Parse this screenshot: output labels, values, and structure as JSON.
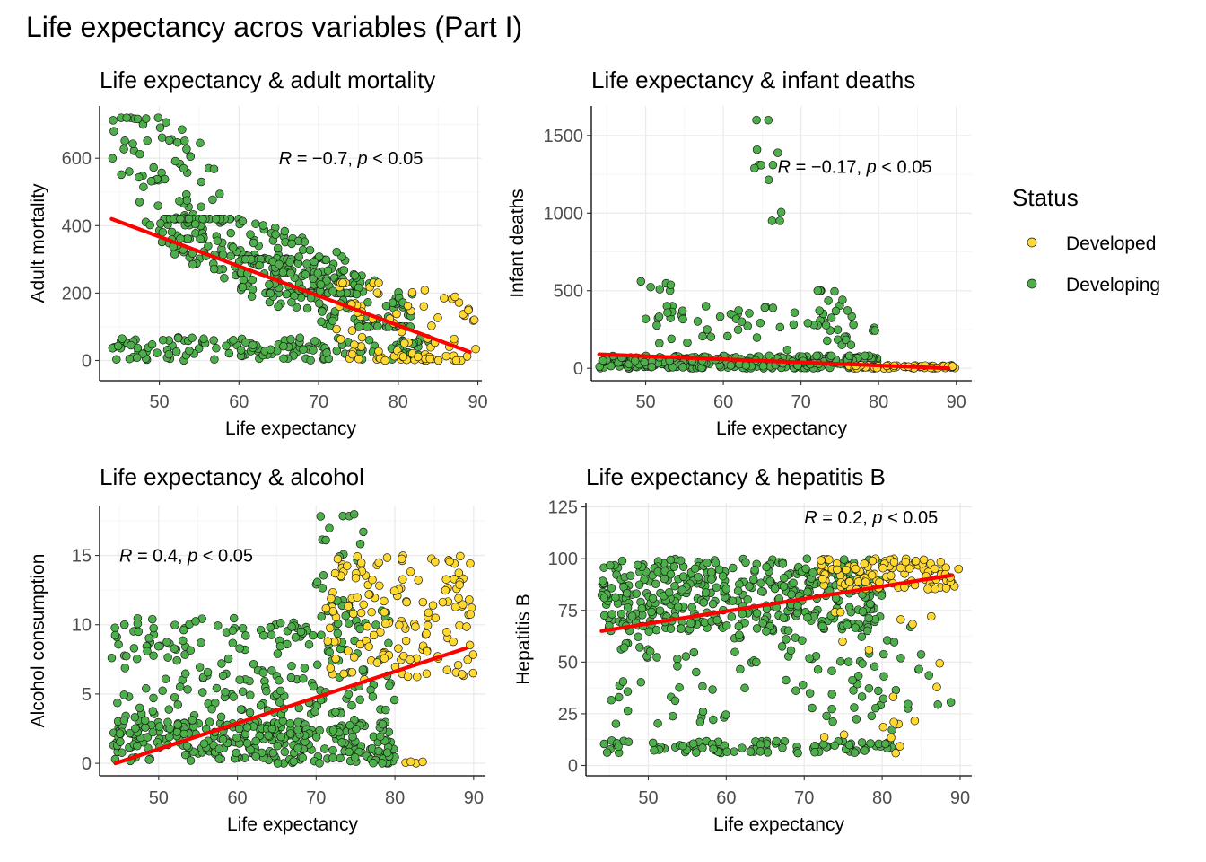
{
  "title": "Life expectancy acros variables (Part I)",
  "legend": {
    "title": "Status",
    "items": [
      {
        "label": "Developed",
        "color": "#FFD92F"
      },
      {
        "label": "Developing",
        "color": "#4DAF4A"
      }
    ]
  },
  "colors": {
    "developed": "#FFD92F",
    "developing": "#4DAF4A",
    "fit": "#FF0000"
  },
  "chart_data": [
    {
      "type": "scatter",
      "title": "Life expectancy & adult mortality",
      "xlabel": "Life expectancy",
      "ylabel": "Adult mortality",
      "xlim": [
        42.5,
        90.5
      ],
      "ylim": [
        -60,
        755
      ],
      "xticks": [
        50,
        60,
        70,
        80,
        90
      ],
      "yticks": [
        0,
        200,
        400,
        600
      ],
      "annotation": {
        "r": "R = −0.7, ",
        "p": "p",
        "rest": " < 0.05",
        "x": 65,
        "y": 600
      },
      "fit": [
        [
          44,
          420
        ],
        [
          89,
          25
        ]
      ],
      "clusters": [
        {
          "status": "developing",
          "x": [
            44,
            58
          ],
          "y": [
            360,
            720
          ],
          "n": 80,
          "slope": -18
        },
        {
          "status": "developing",
          "x": [
            50,
            75
          ],
          "y": [
            200,
            420
          ],
          "n": 200,
          "slope": -10
        },
        {
          "status": "developing",
          "x": [
            60,
            82
          ],
          "y": [
            100,
            300
          ],
          "n": 160,
          "slope": -9
        },
        {
          "status": "developing",
          "x": [
            44,
            84
          ],
          "y": [
            0,
            70
          ],
          "n": 150,
          "slope": 0
        },
        {
          "status": "developed",
          "x": [
            72,
            90
          ],
          "y": [
            0,
            230
          ],
          "n": 70,
          "slope": -6
        },
        {
          "status": "developed",
          "x": [
            73,
            84
          ],
          "y": [
            0,
            30
          ],
          "n": 25,
          "slope": 0
        }
      ]
    },
    {
      "type": "scatter",
      "title": "Life expectancy & infant deaths",
      "xlabel": "Life expectancy",
      "ylabel": "Infant deaths",
      "xlim": [
        43,
        92
      ],
      "ylim": [
        -80,
        1690
      ],
      "xticks": [
        50,
        60,
        70,
        80,
        90
      ],
      "yticks": [
        0,
        500,
        1000,
        1500
      ],
      "annotation": {
        "r": "R = −0.17, ",
        "p": "p",
        "rest": " < 0.05",
        "x": 67,
        "y": 1300
      },
      "fit": [
        [
          44,
          90
        ],
        [
          89,
          0
        ]
      ],
      "clusters": [
        {
          "status": "developing",
          "x": [
            44,
            80
          ],
          "y": [
            0,
            80
          ],
          "n": 320,
          "slope": 0
        },
        {
          "status": "developing",
          "x": [
            50,
            80
          ],
          "y": [
            80,
            400
          ],
          "n": 60,
          "slope": -6
        },
        {
          "status": "developing",
          "x": [
            64,
            68
          ],
          "y": [
            950,
            1600
          ],
          "n": 12,
          "slope": -150
        },
        {
          "status": "developing",
          "x": [
            49,
            54
          ],
          "y": [
            500,
            560
          ],
          "n": 6,
          "slope": -10
        },
        {
          "status": "developing",
          "x": [
            72,
            77
          ],
          "y": [
            150,
            500
          ],
          "n": 20,
          "slope": -70
        },
        {
          "status": "developed",
          "x": [
            76,
            90
          ],
          "y": [
            0,
            20
          ],
          "n": 60,
          "slope": 0
        }
      ]
    },
    {
      "type": "scatter",
      "title": "Life expectancy & alcohol",
      "xlabel": "Life expectancy",
      "ylabel": "Alcohol consumption",
      "xlim": [
        42.5,
        91.5
      ],
      "ylim": [
        -0.9,
        18.6
      ],
      "xticks": [
        50,
        60,
        70,
        80,
        90
      ],
      "yticks": [
        0,
        5,
        10,
        15
      ],
      "annotation": {
        "r": "R = 0.4, ",
        "p": "p",
        "rest": " < 0.05",
        "x": 45,
        "y": 15
      },
      "fit": [
        [
          44.5,
          0
        ],
        [
          89,
          8.3
        ]
      ],
      "clusters": [
        {
          "status": "developing",
          "x": [
            44,
            80
          ],
          "y": [
            0,
            3
          ],
          "n": 280,
          "slope": 0
        },
        {
          "status": "developing",
          "x": [
            44,
            62
          ],
          "y": [
            2,
            10.5
          ],
          "n": 120,
          "slope": 0
        },
        {
          "status": "developing",
          "x": [
            62,
            80
          ],
          "y": [
            2,
            11
          ],
          "n": 140,
          "slope": 0.1
        },
        {
          "status": "developing",
          "x": [
            70,
            76
          ],
          "y": [
            11,
            18
          ],
          "n": 20,
          "slope": 0
        },
        {
          "status": "developed",
          "x": [
            71,
            90
          ],
          "y": [
            6,
            15
          ],
          "n": 150,
          "slope": 0
        },
        {
          "status": "developed",
          "x": [
            81,
            84
          ],
          "y": [
            0,
            0.3
          ],
          "n": 4,
          "slope": 0
        }
      ]
    },
    {
      "type": "scatter",
      "title": "Life expectancy & hepatitis B",
      "xlabel": "Life expectancy",
      "ylabel": "Hepatitis B",
      "xlim": [
        42,
        91.5
      ],
      "ylim": [
        -5,
        127
      ],
      "xticks": [
        50,
        60,
        70,
        80,
        90
      ],
      "yticks": [
        0,
        25,
        50,
        75,
        100,
        125
      ],
      "annotation": {
        "r": "R = 0.2, ",
        "p": "p",
        "rest": " < 0.05",
        "x": 70,
        "y": 120
      },
      "fit": [
        [
          44,
          65
        ],
        [
          89,
          92
        ]
      ],
      "clusters": [
        {
          "status": "developing",
          "x": [
            44,
            80
          ],
          "y": [
            65,
            100
          ],
          "n": 420,
          "slope": 0
        },
        {
          "status": "developing",
          "x": [
            45,
            82
          ],
          "y": [
            20,
            65
          ],
          "n": 90,
          "slope": 0
        },
        {
          "status": "developing",
          "x": [
            44,
            82
          ],
          "y": [
            6,
            12
          ],
          "n": 90,
          "slope": 0
        },
        {
          "status": "developing",
          "x": [
            79,
            89
          ],
          "y": [
            15,
            70
          ],
          "n": 15,
          "slope": 0
        },
        {
          "status": "developed",
          "x": [
            72,
            90
          ],
          "y": [
            85,
            100
          ],
          "n": 110,
          "slope": 0
        },
        {
          "status": "developed",
          "x": [
            72,
            88
          ],
          "y": [
            3,
            80
          ],
          "n": 20,
          "slope": 0
        }
      ]
    }
  ]
}
